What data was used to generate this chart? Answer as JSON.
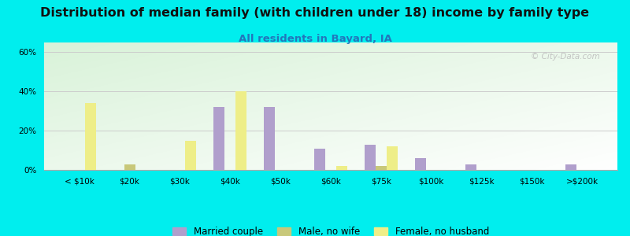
{
  "title": "Distribution of median family (with children under 18) income by family type",
  "subtitle": "All residents in Bayard, IA",
  "categories": [
    "< $10k",
    "$20k",
    "$30k",
    "$40k",
    "$50k",
    "$60k",
    "$75k",
    "$100k",
    "$125k",
    "$150k",
    ">$200k"
  ],
  "married_couple": [
    0,
    0,
    0,
    32,
    32,
    11,
    13,
    6,
    3,
    0,
    3
  ],
  "male_no_wife": [
    0,
    3,
    0,
    0,
    0,
    0,
    2,
    0,
    0,
    0,
    0
  ],
  "female_no_husband": [
    34,
    0,
    15,
    40,
    0,
    2,
    12,
    0,
    0,
    0,
    0
  ],
  "married_color": "#b09fcc",
  "male_color": "#c8c87a",
  "female_color": "#eeee88",
  "ylabel_ticks": [
    "0%",
    "20%",
    "40%",
    "60%"
  ],
  "yticks": [
    0,
    20,
    40,
    60
  ],
  "ylim": [
    0,
    65
  ],
  "bar_width": 0.22,
  "watermark": "© City-Data.com",
  "legend_labels": [
    "Married couple",
    "Male, no wife",
    "Female, no husband"
  ],
  "title_fontsize": 11.5,
  "subtitle_fontsize": 9.5,
  "subtitle_color": "#2277bb",
  "outer_bg": "#00eeee",
  "tick_fontsize": 7.5
}
